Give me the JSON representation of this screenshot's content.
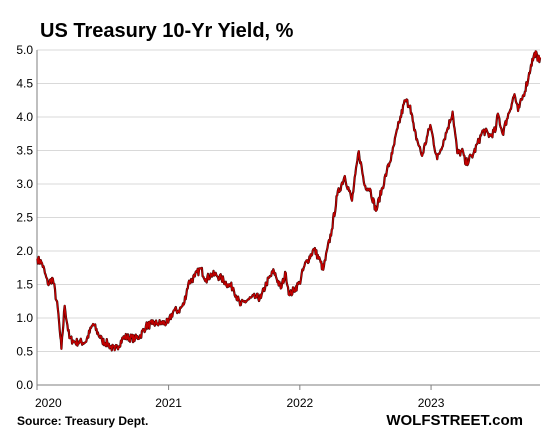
{
  "chart_data": {
    "type": "line",
    "title": "US Treasury 10-Yr Yield, %",
    "xlabel": "",
    "ylabel": "",
    "ylim": [
      0,
      5
    ],
    "xlim": [
      "2020-01-01",
      "2023-10-31"
    ],
    "yticks": [
      "0.0",
      "0.5",
      "1.0",
      "1.5",
      "2.0",
      "2.5",
      "3.0",
      "3.5",
      "4.0",
      "4.5",
      "5.0"
    ],
    "xticks": [
      {
        "label": "2020",
        "date": "2020-01-01"
      },
      {
        "label": "2021",
        "date": "2021-01-01"
      },
      {
        "label": "2022",
        "date": "2022-01-01"
      },
      {
        "label": "2023",
        "date": "2023-01-01"
      }
    ],
    "grid": "horizontal",
    "legend": "none",
    "series": [
      {
        "color": "#c00000",
        "points": [
          [
            "2020-01-02",
            1.88
          ],
          [
            "2020-01-15",
            1.82
          ],
          [
            "2020-01-31",
            1.51
          ],
          [
            "2020-02-14",
            1.59
          ],
          [
            "2020-02-28",
            1.13
          ],
          [
            "2020-03-06",
            0.71
          ],
          [
            "2020-03-09",
            0.54
          ],
          [
            "2020-03-18",
            1.18
          ],
          [
            "2020-03-31",
            0.7
          ],
          [
            "2020-04-15",
            0.64
          ],
          [
            "2020-04-30",
            0.64
          ],
          [
            "2020-05-15",
            0.64
          ],
          [
            "2020-06-05",
            0.91
          ],
          [
            "2020-06-30",
            0.66
          ],
          [
            "2020-07-15",
            0.62
          ],
          [
            "2020-08-04",
            0.52
          ],
          [
            "2020-08-31",
            0.72
          ],
          [
            "2020-09-30",
            0.69
          ],
          [
            "2020-10-15",
            0.74
          ],
          [
            "2020-10-30",
            0.88
          ],
          [
            "2020-11-16",
            0.91
          ],
          [
            "2020-12-01",
            0.92
          ],
          [
            "2020-12-31",
            0.93
          ],
          [
            "2021-01-15",
            1.11
          ],
          [
            "2021-01-29",
            1.11
          ],
          [
            "2021-02-12",
            1.2
          ],
          [
            "2021-02-25",
            1.52
          ],
          [
            "2021-03-15",
            1.62
          ],
          [
            "2021-03-31",
            1.74
          ],
          [
            "2021-04-15",
            1.58
          ],
          [
            "2021-04-30",
            1.65
          ],
          [
            "2021-05-14",
            1.64
          ],
          [
            "2021-05-28",
            1.59
          ],
          [
            "2021-06-15",
            1.5
          ],
          [
            "2021-06-30",
            1.45
          ],
          [
            "2021-07-19",
            1.19
          ],
          [
            "2021-07-30",
            1.24
          ],
          [
            "2021-08-13",
            1.28
          ],
          [
            "2021-08-31",
            1.31
          ],
          [
            "2021-09-15",
            1.3
          ],
          [
            "2021-09-30",
            1.52
          ],
          [
            "2021-10-21",
            1.7
          ],
          [
            "2021-11-09",
            1.44
          ],
          [
            "2021-11-23",
            1.67
          ],
          [
            "2021-12-03",
            1.34
          ],
          [
            "2021-12-31",
            1.52
          ],
          [
            "2022-01-14",
            1.78
          ],
          [
            "2022-02-10",
            2.03
          ],
          [
            "2022-02-28",
            1.83
          ],
          [
            "2022-03-07",
            1.72
          ],
          [
            "2022-03-31",
            2.32
          ],
          [
            "2022-04-15",
            2.83
          ],
          [
            "2022-05-06",
            3.12
          ],
          [
            "2022-05-26",
            2.75
          ],
          [
            "2022-06-14",
            3.49
          ],
          [
            "2022-06-30",
            2.98
          ],
          [
            "2022-07-15",
            2.93
          ],
          [
            "2022-08-01",
            2.6
          ],
          [
            "2022-08-31",
            3.19
          ],
          [
            "2022-09-15",
            3.45
          ],
          [
            "2022-09-30",
            3.83
          ],
          [
            "2022-10-21",
            4.25
          ],
          [
            "2022-11-04",
            4.17
          ],
          [
            "2022-11-15",
            3.8
          ],
          [
            "2022-12-07",
            3.42
          ],
          [
            "2022-12-30",
            3.88
          ],
          [
            "2023-01-18",
            3.37
          ],
          [
            "2023-02-15",
            3.81
          ],
          [
            "2023-03-02",
            4.08
          ],
          [
            "2023-03-15",
            3.46
          ],
          [
            "2023-03-31",
            3.48
          ],
          [
            "2023-04-06",
            3.3
          ],
          [
            "2023-04-28",
            3.44
          ],
          [
            "2023-05-26",
            3.8
          ],
          [
            "2023-06-15",
            3.72
          ],
          [
            "2023-06-30",
            3.81
          ],
          [
            "2023-07-06",
            4.05
          ],
          [
            "2023-07-19",
            3.75
          ],
          [
            "2023-07-31",
            3.97
          ],
          [
            "2023-08-21",
            4.34
          ],
          [
            "2023-08-31",
            4.09
          ],
          [
            "2023-09-15",
            4.33
          ],
          [
            "2023-09-29",
            4.59
          ],
          [
            "2023-10-06",
            4.78
          ],
          [
            "2023-10-19",
            4.98
          ],
          [
            "2023-10-24",
            4.84
          ],
          [
            "2023-10-31",
            4.88
          ]
        ]
      }
    ]
  },
  "footer": {
    "source": "Source: Treasury Dept.",
    "brand": "WOLFSTREET.com"
  }
}
